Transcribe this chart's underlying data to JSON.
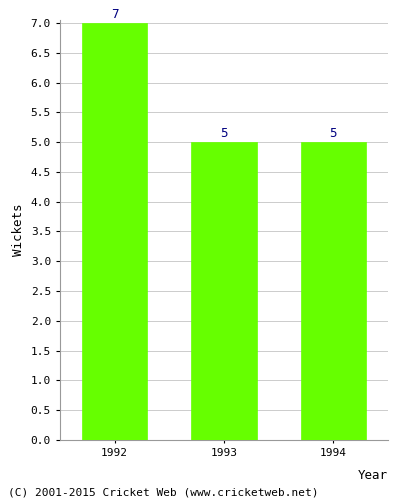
{
  "categories": [
    "1992",
    "1993",
    "1994"
  ],
  "values": [
    7,
    5,
    5
  ],
  "bar_color": "#66ff00",
  "bar_edge_color": "#66ff00",
  "value_label_color": "#000080",
  "xlabel": "Year",
  "ylabel": "Wickets",
  "ylim": [
    0,
    7.0
  ],
  "ytick_step": 0.5,
  "background_color": "#ffffff",
  "grid_color": "#cccccc",
  "footer_text": "(C) 2001-2015 Cricket Web (www.cricketweb.net)",
  "value_fontsize": 9,
  "axis_label_fontsize": 9,
  "tick_fontsize": 8,
  "footer_fontsize": 8,
  "bar_width": 0.6,
  "xlim_left": -0.5,
  "xlim_right": 2.5
}
